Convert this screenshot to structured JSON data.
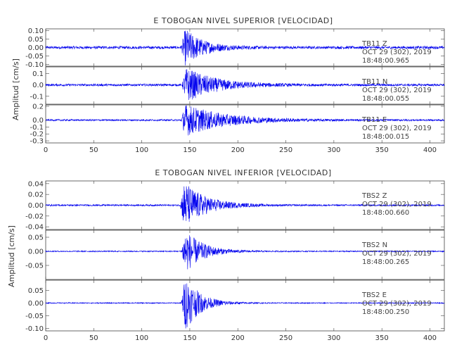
{
  "chart_data": [
    {
      "type": "line",
      "title": "E TOBOGAN NIVEL SUPERIOR [VELOCIDAD]",
      "ylabel": "Amplitud [cm/s]",
      "xlim": [
        0,
        415
      ],
      "x_ticks": [
        "0",
        "50",
        "100",
        "150",
        "200",
        "250",
        "300",
        "350",
        "400"
      ],
      "x_tick_values": [
        0,
        50,
        100,
        150,
        200,
        250,
        300,
        350,
        400
      ],
      "color": "#0000ee",
      "grid": false,
      "panels": [
        {
          "station": "TB11",
          "component": "Z",
          "date": "OCT 29 (302), 2019",
          "time": "18:48:00.965",
          "ylim": [
            -0.11,
            0.11
          ],
          "y_ticks": [
            "0.10",
            "0.05",
            "0.00",
            "-0.05",
            "-0.10"
          ],
          "y_tick_values": [
            0.1,
            0.05,
            0.0,
            -0.05,
            -0.1
          ],
          "onset_s": 141,
          "peak_abs": 0.1,
          "noise_abs": 0.008,
          "decay_s": 18
        },
        {
          "station": "TB11",
          "component": "N",
          "date": "OCT 29 (302), 2019",
          "time": "18:48:00.055",
          "ylim": [
            -0.17,
            0.16
          ],
          "y_ticks": [
            "0.1",
            "0.0",
            "-0.1"
          ],
          "y_tick_values": [
            0.1,
            0.0,
            -0.1
          ],
          "onset_s": 142,
          "peak_abs": 0.14,
          "noise_abs": 0.01,
          "decay_s": 30
        },
        {
          "station": "TB11",
          "component": "E",
          "date": "OCT 29 (302), 2019",
          "time": "18:48:00.015",
          "ylim": [
            -0.33,
            0.22
          ],
          "y_ticks": [
            "0.2",
            "0.0",
            "-0.1",
            "-0.2",
            "-0.3"
          ],
          "y_tick_values": [
            0.2,
            0.0,
            -0.1,
            -0.2,
            -0.3
          ],
          "onset_s": 141,
          "peak_abs": 0.22,
          "noise_abs": 0.012,
          "decay_s": 40
        }
      ]
    },
    {
      "type": "line",
      "title": "E TOBOGAN NIVEL INFERIOR [VELOCIDAD]",
      "ylabel": "Amplitud [cm/s]",
      "xlim": [
        0,
        415
      ],
      "x_ticks": [
        "0",
        "50",
        "100",
        "150",
        "200",
        "250",
        "300",
        "350",
        "400"
      ],
      "x_tick_values": [
        0,
        50,
        100,
        150,
        200,
        250,
        300,
        350,
        400
      ],
      "color": "#0000ee",
      "grid": false,
      "panels": [
        {
          "station": "TBS2",
          "component": "Z",
          "date": "OCT 29 (302), 2019",
          "time": "18:48:00.660",
          "ylim": [
            -0.045,
            0.045
          ],
          "y_ticks": [
            "0.04",
            "0.02",
            "0.00",
            "-0.02",
            "-0.04"
          ],
          "y_tick_values": [
            0.04,
            0.02,
            0.0,
            -0.02,
            -0.04
          ],
          "onset_s": 140,
          "peak_abs": 0.04,
          "noise_abs": 0.0015,
          "decay_s": 22
        },
        {
          "station": "TBS2",
          "component": "N",
          "date": "OCT 29 (302), 2019",
          "time": "18:48:00.265",
          "ylim": [
            -0.1,
            0.075
          ],
          "y_ticks": [
            "0.05",
            "0.00",
            "-0.05"
          ],
          "y_tick_values": [
            0.05,
            0.0,
            -0.05
          ],
          "onset_s": 141,
          "peak_abs": 0.07,
          "noise_abs": 0.002,
          "decay_s": 18
        },
        {
          "station": "TBS2",
          "component": "E",
          "date": "OCT 29 (302), 2019",
          "time": "18:48:00.250",
          "ylim": [
            -0.11,
            0.09
          ],
          "y_ticks": [
            "0.05",
            "0.00",
            "-0.05",
            "-0.10"
          ],
          "y_tick_values": [
            0.05,
            0.0,
            -0.05,
            -0.1
          ],
          "onset_s": 141,
          "peak_abs": 0.1,
          "noise_abs": 0.002,
          "decay_s": 15
        }
      ]
    }
  ]
}
